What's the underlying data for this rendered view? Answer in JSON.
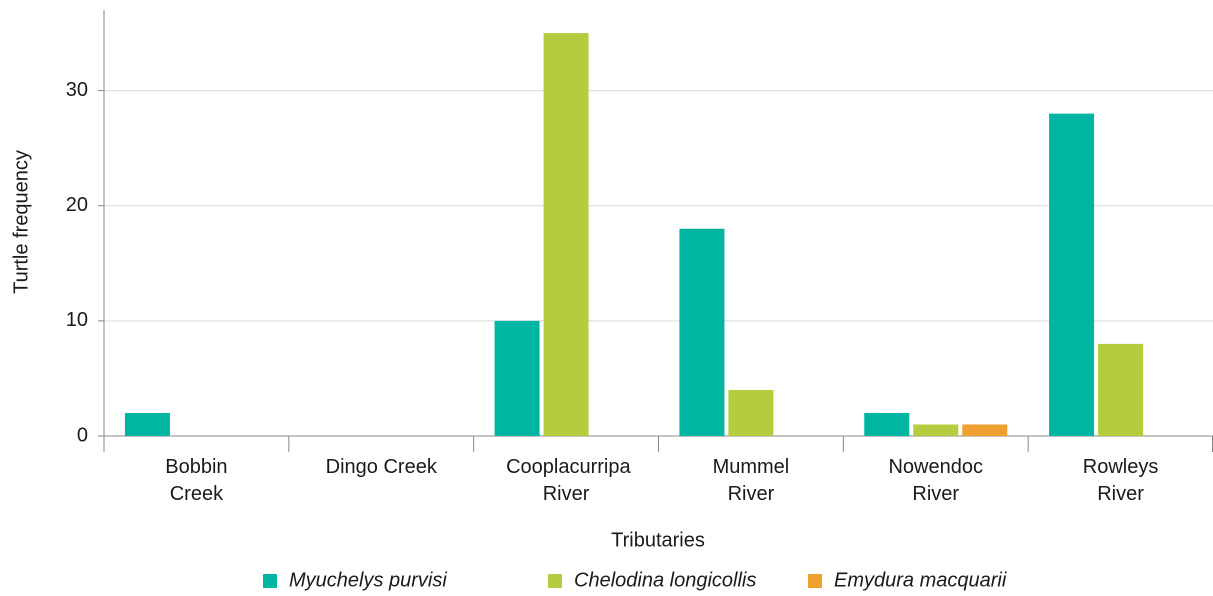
{
  "chart_data": {
    "type": "bar",
    "x_label": "Tributaries",
    "y_label": "Turtle frequency",
    "categories": [
      "Bobbin Creek",
      "Dingo Creek",
      "Cooplacurripa River",
      "Mummel River",
      "Nowendoc River",
      "Rowleys River"
    ],
    "series": [
      {
        "name": "Myuchelys purvisi",
        "color": "#00b5a1",
        "values": [
          2,
          0,
          10,
          18,
          2,
          28
        ]
      },
      {
        "name": "Chelodina longicollis",
        "color": "#b6cc3e",
        "values": [
          0,
          0,
          35,
          4,
          1,
          8
        ]
      },
      {
        "name": "Emydura macquarii",
        "color": "#f0a02e",
        "values": [
          0,
          0,
          0,
          0,
          1,
          0
        ]
      }
    ],
    "ylim": [
      0,
      37
    ],
    "yticks": [
      0,
      10,
      20,
      30
    ],
    "grid": true,
    "legend": "bottom"
  }
}
